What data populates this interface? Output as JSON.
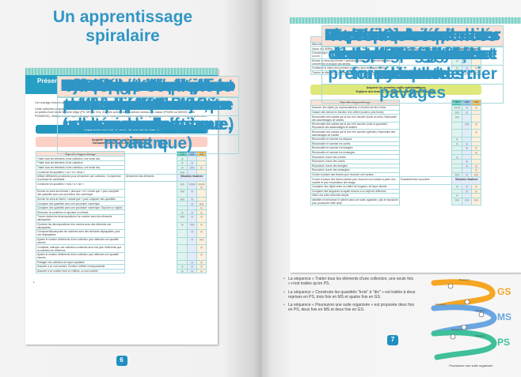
{
  "left_page": {
    "title": "Un apprentissage spiralaire",
    "banner": "Présentation des séquences et répartition par niveau de classe",
    "intro": [
      "Cet ouvrage s'inscrit dans une collection s'adressant aux enseignants des trois niveaux de l'école maternelle.",
      "Cette collection propose des séquences permettant l'apprentissage des notions mathématiques aux enfants du cycle 1. Certaines visent un public d'une seule tranche d'âge (PS, MS ou GS), d'autres concernent plusieurs niveaux de classe (PS/MS ou MS/GS, voire PS/MS/GS). Cela permet un apprentissage spiralaire sur le cycle contribuant à installer progressivement les savoirs et les compétences."
    ],
    "section_bar": "Répartition des séquences par niveau de classe",
    "domain_box": [
      "Acquérir les premiers outils mathématiques",
      "Découvrir les nombres et leurs utilisations"
    ],
    "headers": [
      "Objectifs d'apprentissage",
      "Titres des séquences",
      "PS",
      "MS",
      "GS"
    ],
    "rows": [
      [
        "Traiter tous les éléments d'une collection, une seule fois.",
        "Distribuer un élément à chacun",
        "◎",
        "",
        ""
      ],
      [
        "Traiter tous les éléments d'une collection.",
        "Pointer ou compter tous les éléments d'une collection",
        "◎",
        "◎",
        ""
      ],
      [
        "Traiter tous les éléments d'une collection, une seule fois.",
        "Pointer ou compter tous les éléments, en une seule fois",
        "◎",
        "◎◎",
        "◎"
      ],
      [
        "Construire les quantités « un » et « deux ».",
        "Construire le nombre « un » et le nombre « deux »",
        "◎◎",
        "",
        ""
      ],
      [
        "Utiliser différentes procédures pour dénombrer une collection. Comprendre le principe de cardinalité.",
        "Dénombrer des éléments",
        "Situation ritualisée",
        "",
        ""
      ],
      [
        "Construire les quantités « trois » à « dix ».",
        "Construire les nombres « trois » à « dix »",
        "◎◎",
        "◎◎◎",
        "◎◎◎◎"
      ],
      [
        "Donner du sens aux termes « plus que » et « moins que » pour comparer des quantités avec une procédure non numérique.",
        "Comparer avec une procédure non numérique (plus que, moins que)",
        "◎◎",
        "◎",
        ""
      ],
      [
        "Donner du sens au terme « autant que » pour comparer des quantités.",
        "Autant que",
        "◎◎",
        "◎",
        ""
      ],
      [
        "Comparer des quantités avec une procédure numérique.",
        "Comparer avec une procédure numérique (plus que, moins que)",
        "",
        "◎",
        "◎◎"
      ],
      [
        "Comparer des quantités avec une procédure numérique. Explorer un napkin.",
        "Explorer un napkin",
        "",
        "",
        "◎"
      ],
      [
        "Résoudre un problème en ajoutant ou retirant.",
        "Aller chercher « juste ce qu'il faut »",
        "◎",
        "◎",
        "◎"
      ],
      [
        "Trouver toutes les décompositions d'un nombre avec des éléments déplaçables.",
        "Chercher toutes les décompositions d'un nombre",
        "◎◎",
        "◎",
        "◎"
      ],
      [
        "Chercher les décompositions d'un nombre avec des éléments non déplaçables.",
        "Décomposer/recomposer les nombres",
        "◎",
        "◎◎",
        "◎"
      ],
      [
        "Composer/décomposer les nombres avec des éléments déplaçables, puis non déplaçables.",
        "Recomposer avec l'écriture chiffrée",
        "",
        "◎",
        "◎"
      ],
      [
        "Ajuster le nombre d'éléments d'une collection pour atteindre une quantité donnée.",
        "Compléter une collection par ajouts",
        "",
        "◎",
        "◎◎"
      ],
      [
        "Constituer, anticiper une collection contenant deux fois plus d'éléments que la collection de référence.",
        "Constituer une collection deux fois plus grande qu'une autre",
        "",
        "",
        "◎"
      ],
      [
        "Ajuster le nombre d'éléments d'une collection pour atteindre une quantité donnée.",
        "Ajuster une collection par retraits",
        "",
        "",
        "◎"
      ],
      [
        "Partager une collection de façon équitable.",
        "Partager de façon équitable",
        "",
        "◎",
        "◎"
      ],
      [
        "Associer à un mot-nombre, l'écriture chiffrée correspondante.",
        "Trouver l'écriture chiffrée",
        "◎",
        "◎",
        "◎"
      ],
      [
        "Associer à un nombre écrit en chiffres, un mot-nombre.",
        "Lire l'écriture chiffrée",
        "◎",
        "◎",
        "◎"
      ]
    ],
    "page_number": "6"
  },
  "right_page": {
    "table1": {
      "headers": [
        "Objectifs d'apprentissage",
        "Titres des séquences",
        "PS",
        "MS",
        "GS"
      ],
      "rows": [
        [
          "Mémoriser la suite ordonnée des écritures chiffrées.",
          "Mémoriser la suite écrite des nombres",
          "◎",
          "◎",
          "◎"
        ],
        [
          "Savoir des chiffres.",
          "Écrire les nombres en chiffres",
          "Situation ritualisée",
          "",
          ""
        ],
        [
          "Communiquer une quantité à l'écrit en utilisant des symboles conventionnels ou non.",
          "Communiquer une quantité à l'écrit",
          "",
          "◎",
          "◎"
        ],
        [
          "Donner du sens aux termes « premier/première » et « dernier/dernière » : comprendre et évoluer ces termes.",
          "Indiquer dans un rang les positions « premier » et « dernier »",
          "◎",
          "",
          ""
        ],
        [
          "Construire la notion des premiers nombres dans leur aspect ordinal.",
          "Repérer dans un rang la position d'un élément",
          "◎",
          "◎",
          "◎"
        ],
        [
          "Trouver un élément en connaissant sa position. Verbaliser un rang.",
          "Indiquer dans un rang la position d'un élément",
          "",
          "◎◎",
          "◎"
        ]
      ]
    },
    "domain_box": [
      "Acquérir les premiers outils mathématiques",
      "Explorer des formes, des grandeurs, des suites organisées"
    ],
    "table2": {
      "headers": [
        "Objectifs d'apprentissage",
        "Titres des séquences",
        "PS",
        "MS",
        "GS"
      ],
      "rows": [
        [
          "Associer des objets (ou représentations) en fonction de leur forme.",
          "Associer deux à deux",
          "◎◎◎",
          "◎",
          "◎"
        ],
        [
          "Classer des formes en fonction d'un critère (couleur, puis forme).",
          "Classer",
          "◎◎",
          "◎",
          ""
        ],
        [
          "Reconnaître des solides par la vue et le toucher (boule et cube). Reproduire des assemblages de solides.",
          "Identifier et assembler des solides : boule et cube",
          "◎◎",
          "",
          ""
        ],
        [
          "Reconnaître des solides par la vue et le toucher (cube et pyramide). Reproduire des assemblages de solides.",
          "Identifier et assembler des solides : cube et pyramide",
          "",
          "◎◎",
          "◎"
        ],
        [
          "Reconnaître des solides par la vue et le toucher (cylindre). Reproduire des assemblages de solides.",
          "Identifier et assembler des solides : cylindre",
          "",
          "",
          "◎"
        ],
        [
          "Reconnaître et nommer les disques.",
          "Capturer des formes : les disques/ronds",
          "◎",
          "",
          ""
        ],
        [
          "Reconnaître et nommer les carrés.",
          "Capturer des formes : les carrés",
          "◎",
          "◎",
          ""
        ],
        [
          "Reconnaître et nommer les triangles.",
          "Capturer des formes : les triangles",
          "",
          "◎",
          "◎"
        ],
        [
          "Reconnaître et nommer les rectangles.",
          "Capturer des formes : les rectangles",
          "",
          "",
          "◎"
        ],
        [
          "Reproduire, tracer des cercles.",
          "Reproduire des cercles",
          "◎",
          "",
          ""
        ],
        [
          "Reproduire, tracer des carrés.",
          "Reproduire des carrés",
          "",
          "◎",
          ""
        ],
        [
          "Reproduire, tracer des triangles.",
          "Reproduire des triangles",
          "",
          "◎",
          "◎"
        ],
        [
          "Reproduire, tracer des rectangles.",
          "Reproduire des rectangles",
          "",
          "",
          "◎"
        ],
        [
          "Choisir et placer des formes pour recouvrir une surface.",
          "Reproduire des assemblages de formes planes : pavages",
          "◎◎",
          "◎",
          "◎◎"
        ],
        [
          "Choisir et placer des formes planes pour recouvrir une surface à partir d'un modèle et pour reconstituer une image.",
          "Encastrements et puzzles",
          "Situation ritualisée",
          "",
          ""
        ],
        [
          "Comparer des objets selon un critère de longueur, de façon directe.",
          "Comparer des longueurs de façon directe",
          "◎",
          "◎",
          "◎"
        ],
        [
          "Comparer des longueurs en ayant recours à un objet de référence.",
          "Comparer des longueurs de façon indirecte",
          "",
          "◎",
          "◎"
        ],
        [
          "Imiter une suite ordonnée simple.",
          "Imiter une séquence d'éléments",
          "◎",
          "",
          ""
        ],
        [
          "Identifier et mémoriser le rythme dans une suite organisée, puis le reproduire pour poursuivre cette suite.",
          "Poursuivre une suite organisée",
          "◎◎",
          "◎◎",
          "◎◎"
        ]
      ]
    },
    "bullets": [
      "La séquence « Traiter tous les éléments d'une collection, une seule fois » n'est traitée qu'en PS.",
      "La séquence « Construire les quantités \"trois\" à \"dix\" » est traitée à deux reprises en PS, trois fois en MS et quatre fois en GS.",
      "La séquence « Poursuivre une suite organisée » est proposée deux fois en PS, deux fois en MS et deux fois en GS."
    ],
    "spiral": {
      "levels": [
        "GS",
        "MS",
        "PS"
      ],
      "colors": {
        "GS": "#f5a623",
        "MS": "#6aa6e0",
        "PS": "#3fbf9a"
      },
      "period_labels": [
        "Période 1",
        "Période 2",
        "Période 3",
        "Période 4",
        "Période 5"
      ],
      "caption": "Poursuivre une suite organisée"
    },
    "page_number": "7"
  }
}
